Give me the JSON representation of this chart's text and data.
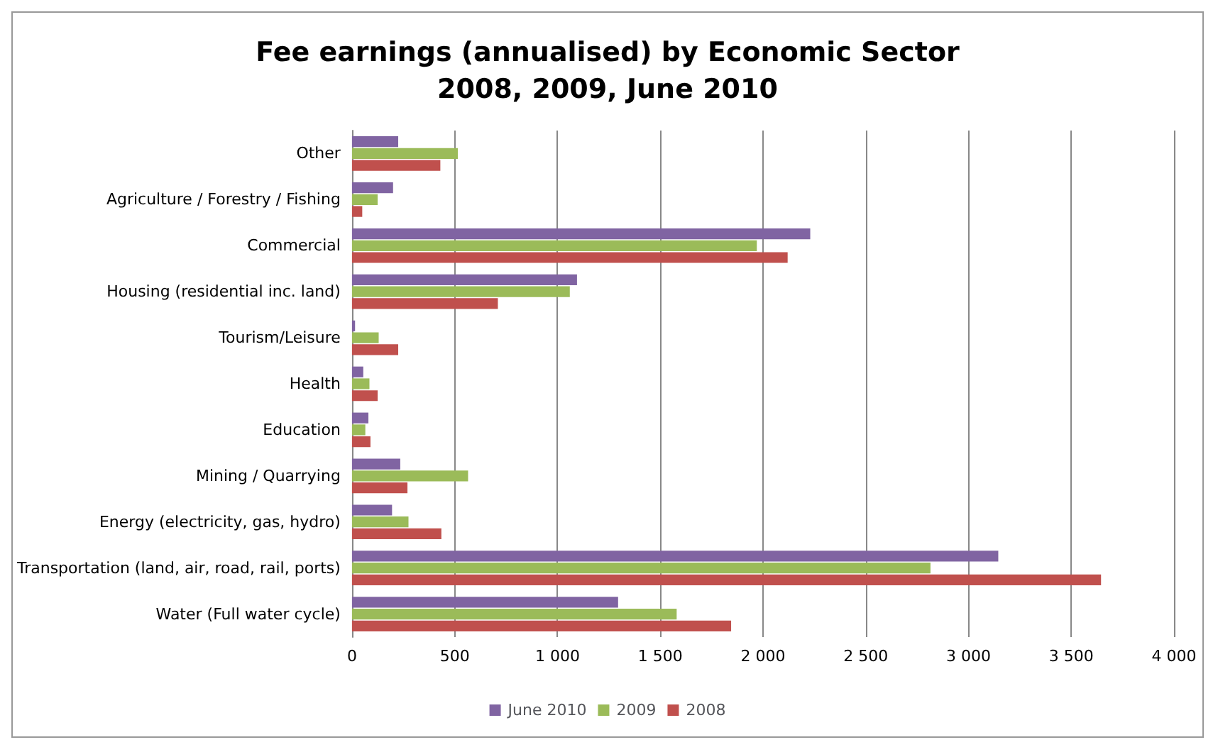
{
  "chart_data": {
    "type": "bar",
    "orientation": "horizontal",
    "title": "Fee earnings (annualised) by Economic Sector\n2008, 2009, June 2010",
    "categories": [
      "Other",
      "Agriculture / Forestry / Fishing",
      "Commercial",
      "Housing (residential inc. land)",
      "Tourism/Leisure",
      "Health",
      "Education",
      "Mining / Quarrying",
      "Energy (electricity, gas, hydro)",
      "Transportation (land, air, road, rail, ports)",
      "Water (Full water cycle)"
    ],
    "series": [
      {
        "name": "June 2010",
        "color": "#8064a2",
        "values": [
          225,
          200,
          2230,
          1095,
          15,
          55,
          80,
          235,
          195,
          3145,
          1295
        ]
      },
      {
        "name": "2009",
        "color": "#9bbb59",
        "values": [
          515,
          125,
          1970,
          1060,
          130,
          85,
          65,
          565,
          275,
          2815,
          1580
        ]
      },
      {
        "name": "2008",
        "color": "#c0504d",
        "values": [
          430,
          50,
          2120,
          710,
          225,
          125,
          90,
          270,
          435,
          3645,
          1845
        ]
      }
    ],
    "xlim": [
      0,
      4000
    ],
    "xticks": [
      0,
      500,
      {
        "value": 1000,
        "label": "1 000"
      },
      {
        "value": 1500,
        "label": "1 500"
      },
      {
        "value": 2000,
        "label": "2 000"
      },
      {
        "value": 2500,
        "label": "2 500"
      },
      {
        "value": 3000,
        "label": "3 000"
      },
      {
        "value": 3500,
        "label": "3 500"
      },
      {
        "value": 4000,
        "label": "4 000"
      }
    ],
    "grid": "x",
    "legend": "bottom"
  }
}
